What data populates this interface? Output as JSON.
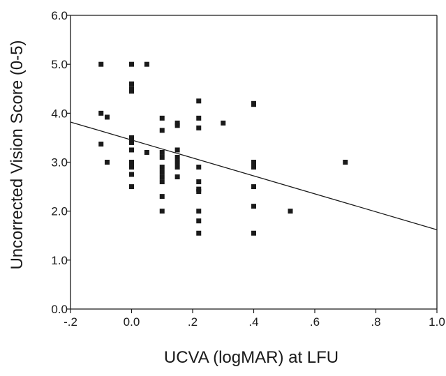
{
  "chart_data": {
    "type": "scatter",
    "title": "",
    "xlabel": "UCVA (logMAR) at LFU",
    "ylabel": "Uncorrected Vision Score (0-5)",
    "xlim": [
      -0.2,
      1.0
    ],
    "ylim": [
      0.0,
      6.0
    ],
    "x_ticks": [
      {
        "value": -0.2,
        "label": "-.2"
      },
      {
        "value": 0.0,
        "label": "0.0"
      },
      {
        "value": 0.2,
        "label": ".2"
      },
      {
        "value": 0.4,
        "label": ".4"
      },
      {
        "value": 0.6,
        "label": ".6"
      },
      {
        "value": 0.8,
        "label": ".8"
      },
      {
        "value": 1.0,
        "label": "1.0"
      }
    ],
    "y_ticks": [
      {
        "value": 0.0,
        "label": "0.0"
      },
      {
        "value": 1.0,
        "label": "1.0"
      },
      {
        "value": 2.0,
        "label": "2.0"
      },
      {
        "value": 3.0,
        "label": "3.0"
      },
      {
        "value": 4.0,
        "label": "4.0"
      },
      {
        "value": 5.0,
        "label": "5.0"
      },
      {
        "value": 6.0,
        "label": "6.0"
      }
    ],
    "grid": false,
    "marker_color": "#1a1a1a",
    "line_color": "#1a1a1a",
    "points": [
      {
        "x": -0.1,
        "y": 5.0
      },
      {
        "x": -0.1,
        "y": 4.0
      },
      {
        "x": -0.1,
        "y": 3.37
      },
      {
        "x": -0.08,
        "y": 3.92
      },
      {
        "x": -0.08,
        "y": 3.0
      },
      {
        "x": 0.0,
        "y": 5.0
      },
      {
        "x": 0.0,
        "y": 4.6
      },
      {
        "x": 0.0,
        "y": 4.5
      },
      {
        "x": 0.0,
        "y": 4.45
      },
      {
        "x": 0.0,
        "y": 3.5
      },
      {
        "x": 0.0,
        "y": 3.4
      },
      {
        "x": 0.0,
        "y": 3.25
      },
      {
        "x": 0.0,
        "y": 3.0
      },
      {
        "x": 0.0,
        "y": 2.9
      },
      {
        "x": 0.0,
        "y": 2.75
      },
      {
        "x": 0.0,
        "y": 2.5
      },
      {
        "x": 0.05,
        "y": 5.0
      },
      {
        "x": 0.05,
        "y": 3.2
      },
      {
        "x": 0.1,
        "y": 3.9
      },
      {
        "x": 0.1,
        "y": 3.65
      },
      {
        "x": 0.1,
        "y": 3.2
      },
      {
        "x": 0.1,
        "y": 3.1
      },
      {
        "x": 0.1,
        "y": 2.9
      },
      {
        "x": 0.1,
        "y": 2.8
      },
      {
        "x": 0.1,
        "y": 2.7
      },
      {
        "x": 0.1,
        "y": 2.6
      },
      {
        "x": 0.1,
        "y": 2.3
      },
      {
        "x": 0.1,
        "y": 2.0
      },
      {
        "x": 0.15,
        "y": 3.8
      },
      {
        "x": 0.15,
        "y": 3.75
      },
      {
        "x": 0.15,
        "y": 3.25
      },
      {
        "x": 0.15,
        "y": 3.1
      },
      {
        "x": 0.15,
        "y": 3.0
      },
      {
        "x": 0.15,
        "y": 2.9
      },
      {
        "x": 0.15,
        "y": 2.7
      },
      {
        "x": 0.22,
        "y": 4.25
      },
      {
        "x": 0.22,
        "y": 3.9
      },
      {
        "x": 0.22,
        "y": 3.7
      },
      {
        "x": 0.22,
        "y": 2.9
      },
      {
        "x": 0.22,
        "y": 2.6
      },
      {
        "x": 0.22,
        "y": 2.45
      },
      {
        "x": 0.22,
        "y": 2.4
      },
      {
        "x": 0.22,
        "y": 2.0
      },
      {
        "x": 0.22,
        "y": 1.8
      },
      {
        "x": 0.22,
        "y": 1.55
      },
      {
        "x": 0.3,
        "y": 3.8
      },
      {
        "x": 0.4,
        "y": 4.2
      },
      {
        "x": 0.4,
        "y": 4.18
      },
      {
        "x": 0.4,
        "y": 3.0
      },
      {
        "x": 0.4,
        "y": 2.9
      },
      {
        "x": 0.4,
        "y": 2.5
      },
      {
        "x": 0.4,
        "y": 2.1
      },
      {
        "x": 0.4,
        "y": 1.55
      },
      {
        "x": 0.52,
        "y": 2.0
      },
      {
        "x": 0.7,
        "y": 3.0
      }
    ],
    "regression_line": {
      "x": [
        -0.2,
        1.0
      ],
      "y": [
        3.82,
        1.62
      ]
    }
  }
}
